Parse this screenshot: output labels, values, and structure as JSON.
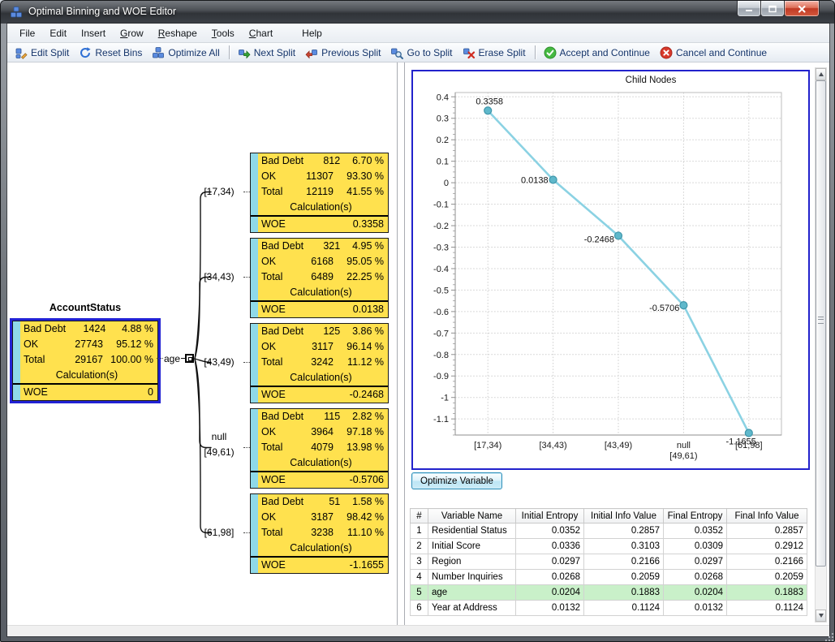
{
  "window": {
    "title": "Optimal Binning and WOE Editor"
  },
  "menu": {
    "items": [
      {
        "pre": "File",
        "key": "",
        "post": ""
      },
      {
        "pre": "Edit",
        "key": "",
        "post": ""
      },
      {
        "pre": "Insert",
        "key": "",
        "post": ""
      },
      {
        "pre": "",
        "key": "G",
        "post": "row"
      },
      {
        "pre": "",
        "key": "R",
        "post": "eshape"
      },
      {
        "pre": "",
        "key": "T",
        "post": "ools"
      },
      {
        "pre": "",
        "key": "C",
        "post": "hart"
      },
      {
        "pre": "Help",
        "key": "",
        "post": ""
      }
    ]
  },
  "toolbar": {
    "buttons": [
      {
        "label": "Edit Split"
      },
      {
        "label": "Reset Bins"
      },
      {
        "label": "Optimize All"
      },
      {
        "label": "Next Split"
      },
      {
        "label": "Previous Split"
      },
      {
        "label": "Go to Split"
      },
      {
        "label": "Erase Split"
      },
      {
        "label": "Accept and Continue"
      },
      {
        "label": "Cancel and Continue"
      }
    ]
  },
  "tree": {
    "root_title": "AccountStatus",
    "branch_variable": "age",
    "calc_label": "Calculation(s)",
    "woe_label": "WOE",
    "root": {
      "rows": [
        [
          "Bad Debt",
          "1424",
          "4.88 %"
        ],
        [
          "OK",
          "27743",
          "95.12 %"
        ],
        [
          "Total",
          "29167",
          "100.00 %"
        ]
      ],
      "woe": "0"
    },
    "children": [
      {
        "range": "[17,34)",
        "range2": "",
        "rows": [
          [
            "Bad Debt",
            "812",
            "6.70 %"
          ],
          [
            "OK",
            "11307",
            "93.30 %"
          ],
          [
            "Total",
            "12119",
            "41.55 %"
          ]
        ],
        "woe": "0.3358"
      },
      {
        "range": "[34,43)",
        "range2": "",
        "rows": [
          [
            "Bad Debt",
            "321",
            "4.95 %"
          ],
          [
            "OK",
            "6168",
            "95.05 %"
          ],
          [
            "Total",
            "6489",
            "22.25 %"
          ]
        ],
        "woe": "0.0138"
      },
      {
        "range": "[43,49)",
        "range2": "",
        "rows": [
          [
            "Bad Debt",
            "125",
            "3.86 %"
          ],
          [
            "OK",
            "3117",
            "96.14 %"
          ],
          [
            "Total",
            "3242",
            "11.12 %"
          ]
        ],
        "woe": "-0.2468"
      },
      {
        "range": "null",
        "range2": "[49,61)",
        "rows": [
          [
            "Bad Debt",
            "115",
            "2.82 %"
          ],
          [
            "OK",
            "3964",
            "97.18 %"
          ],
          [
            "Total",
            "4079",
            "13.98 %"
          ]
        ],
        "woe": "-0.5706"
      },
      {
        "range": "[61,98]",
        "range2": "",
        "rows": [
          [
            "Bad Debt",
            "51",
            "1.58 %"
          ],
          [
            "OK",
            "3187",
            "98.42 %"
          ],
          [
            "Total",
            "3238",
            "11.10 %"
          ]
        ],
        "woe": "-1.1655"
      }
    ]
  },
  "chart_data": {
    "type": "line",
    "title": "Child Nodes",
    "categories": [
      "[17,34)",
      "[34,43)",
      "[43,49)",
      "null\n[49,61)",
      "[61,98]"
    ],
    "values": [
      0.3358,
      0.0138,
      -0.2468,
      -0.5706,
      -1.1655
    ],
    "point_labels": [
      "0.3358",
      "0.0138",
      "-0.2468",
      "-0.5706",
      "-1.1655"
    ],
    "ylim": [
      -1.175,
      0.42
    ],
    "ytick_start": 0.4,
    "ytick_step": -0.1,
    "ytick_end": -1.1,
    "grid": true,
    "legend": "none",
    "line_color": "#8bd2e3",
    "marker_fill": "#5fb8cb",
    "marker_stroke": "#3f96aa"
  },
  "optimize_button": {
    "label": "Optimize Variable"
  },
  "variables_table": {
    "headers": [
      "#",
      "Variable Name",
      "Initial Entropy",
      "Initial Info Value",
      "Final Entropy",
      "Final Info Value"
    ],
    "rows": [
      [
        "1",
        "Residential Status",
        "0.0352",
        "0.2857",
        "0.0352",
        "0.2857"
      ],
      [
        "2",
        "Initial Score",
        "0.0336",
        "0.3103",
        "0.0309",
        "0.2912"
      ],
      [
        "3",
        "Region",
        "0.0297",
        "0.2166",
        "0.0297",
        "0.2166"
      ],
      [
        "4",
        "Number Inquiries",
        "0.0268",
        "0.2059",
        "0.0268",
        "0.2059"
      ],
      [
        "5",
        "age",
        "0.0204",
        "0.1883",
        "0.0204",
        "0.1883"
      ],
      [
        "6",
        "Year at Address",
        "0.0132",
        "0.1124",
        "0.0132",
        "0.1124"
      ]
    ],
    "highlighted_variable": "age",
    "highlight_color": "#c9f0c9"
  },
  "colors": {
    "node_fill": "#ffe14e",
    "node_stripe": "#8fd9e9",
    "root_node_border": "#2222d4",
    "chart_border": "#2222cc",
    "toolbar_text": "#15356b",
    "accept_green": "#45b942",
    "cancel_red": "#d8392b",
    "highlight_row_green": "#c9f0c9"
  },
  "icon_names": [
    "app-icon",
    "edit-split-icon",
    "reset-bins-icon",
    "optimize-all-icon",
    "next-split-icon",
    "previous-split-icon",
    "go-to-split-icon",
    "erase-split-icon",
    "accept-icon",
    "cancel-icon",
    "minimize-icon",
    "maximize-icon",
    "close-icon",
    "scroll-up-icon",
    "scroll-down-icon",
    "expand-collapse-box",
    "resize-grip"
  ]
}
